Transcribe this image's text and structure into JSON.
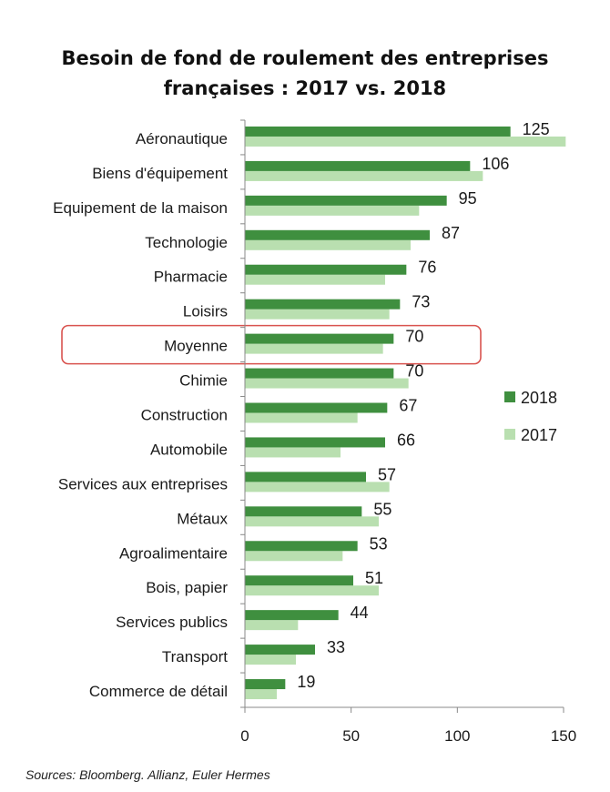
{
  "chart_data": {
    "type": "bar",
    "orientation": "horizontal",
    "title_line1": "Besoin de fond de roulement des entreprises",
    "title_line2": "françaises : 2017 vs. 2018",
    "categories": [
      "Aéronautique",
      "Biens d'équipement",
      "Equipement de la maison",
      "Technologie",
      "Pharmacie",
      "Loisirs",
      "Moyenne",
      "Chimie",
      "Construction",
      "Automobile",
      "Services aux entreprises",
      "Métaux",
      "Agroalimentaire",
      "Bois, papier",
      "Services publics",
      "Transport",
      "Commerce de détail"
    ],
    "series": [
      {
        "name": "2018",
        "color": "#3f8f3f",
        "values": [
          125,
          106,
          95,
          87,
          76,
          73,
          70,
          70,
          67,
          66,
          57,
          55,
          53,
          51,
          44,
          33,
          19
        ]
      },
      {
        "name": "2017",
        "color": "#b9dfb0",
        "values": [
          151,
          112,
          82,
          78,
          66,
          68,
          65,
          77,
          53,
          45,
          68,
          63,
          46,
          63,
          25,
          24,
          15
        ]
      }
    ],
    "data_labels": [
      "125",
      "106",
      "95",
      "87",
      "76",
      "73",
      "70",
      "70",
      "67",
      "66",
      "57",
      "55",
      "53",
      "51",
      "44",
      "33",
      "19"
    ],
    "xlim": [
      0,
      150
    ],
    "xticks": [
      0,
      50,
      100,
      150
    ],
    "highlighted_category": "Moyenne",
    "highlight_color": "#d9534f",
    "legend_position": "right",
    "grid": false
  },
  "source": "Sources: Bloomberg. Allianz, Euler Hermes"
}
